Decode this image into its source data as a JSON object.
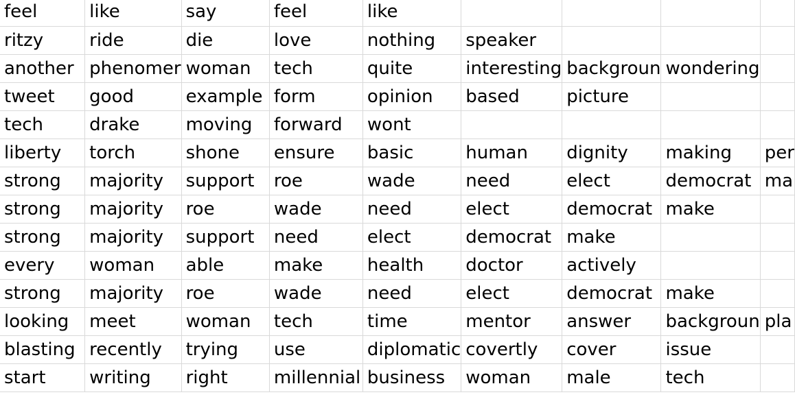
{
  "sheet": {
    "rows": [
      [
        "feel",
        "like",
        "say",
        "feel",
        "like",
        "",
        "",
        "",
        ""
      ],
      [
        "ritzy",
        "ride",
        "die",
        "love",
        "nothing",
        "speaker",
        "",
        "",
        ""
      ],
      [
        "another",
        "phenomer",
        "woman",
        "tech",
        "quite",
        "interesting",
        "backgroun",
        "wondering",
        ""
      ],
      [
        "tweet",
        "good",
        "example",
        "form",
        "opinion",
        "based",
        "picture",
        "",
        ""
      ],
      [
        "tech",
        "drake",
        "moving",
        "forward",
        "wont",
        "",
        "",
        "",
        ""
      ],
      [
        "liberty",
        "torch",
        "shone",
        "ensure",
        "basic",
        "human",
        "dignity",
        "making",
        "per"
      ],
      [
        "strong",
        "majority",
        "support",
        "roe",
        "wade",
        "need",
        "elect",
        "democrat",
        "ma"
      ],
      [
        "strong",
        "majority",
        "roe",
        "wade",
        "need",
        "elect",
        "democrat",
        "make",
        ""
      ],
      [
        "strong",
        "majority",
        "support",
        "need",
        "elect",
        "democrat",
        "make",
        "",
        ""
      ],
      [
        "every",
        "woman",
        "able",
        "make",
        "health",
        "doctor",
        "actively",
        "",
        ""
      ],
      [
        "strong",
        "majority",
        "roe",
        "wade",
        "need",
        "elect",
        "democrat",
        "make",
        ""
      ],
      [
        "looking",
        "meet",
        "woman",
        "tech",
        "time",
        "mentor",
        "answer",
        "backgroun",
        "pla"
      ],
      [
        "blasting",
        "recently",
        "trying",
        "use",
        "diplomatic",
        "covertly",
        "cover",
        "issue",
        ""
      ],
      [
        "start",
        "writing",
        "right",
        "millennial",
        "business",
        "woman",
        "male",
        "tech",
        ""
      ]
    ]
  }
}
